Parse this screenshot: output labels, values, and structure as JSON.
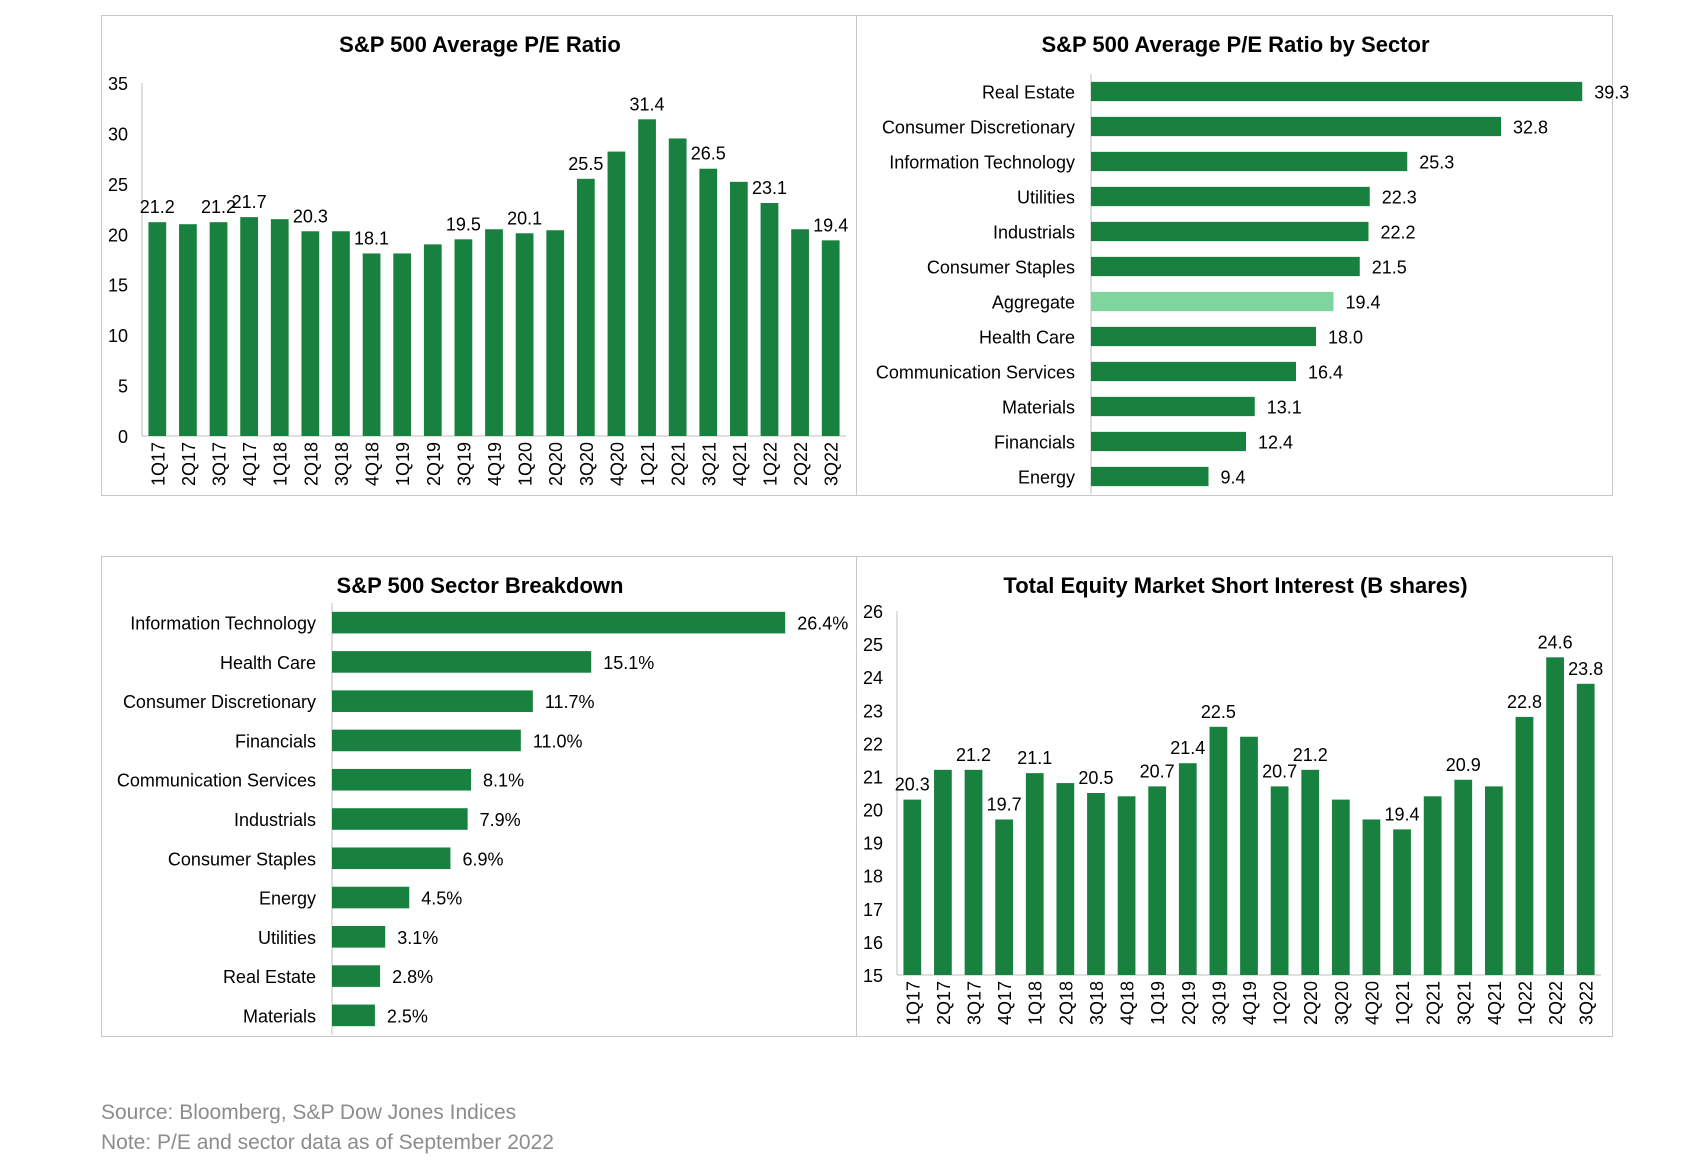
{
  "colors": {
    "bar": "#188140",
    "highlight": "#7fd59e",
    "axis": "#bfbfbf"
  },
  "chart_data": [
    {
      "type": "bar",
      "title": "S&P 500 Average P/E Ratio",
      "categories": [
        "1Q17",
        "2Q17",
        "3Q17",
        "4Q17",
        "1Q18",
        "2Q18",
        "3Q18",
        "4Q18",
        "1Q19",
        "2Q19",
        "3Q19",
        "4Q19",
        "1Q20",
        "2Q20",
        "3Q20",
        "4Q20",
        "1Q21",
        "2Q21",
        "3Q21",
        "4Q21",
        "1Q22",
        "2Q22",
        "3Q22"
      ],
      "values": [
        21.2,
        21.0,
        21.2,
        21.7,
        21.5,
        20.3,
        20.3,
        18.1,
        18.1,
        19.0,
        19.5,
        20.5,
        20.1,
        20.4,
        25.5,
        28.2,
        31.4,
        29.5,
        26.5,
        25.2,
        23.1,
        20.5,
        19.4
      ],
      "data_labels": [
        "21.2",
        "",
        "21.2",
        "21.7",
        "",
        "20.3",
        "",
        "18.1",
        "",
        "",
        "19.5",
        "",
        "20.1",
        "",
        "25.5",
        "",
        "31.4",
        "",
        "26.5",
        "",
        "23.1",
        "",
        "19.4"
      ],
      "ylim": [
        0,
        35
      ],
      "yticks": [
        "0",
        "5",
        "10",
        "15",
        "20",
        "25",
        "30",
        "35"
      ],
      "grid": false
    },
    {
      "type": "bar",
      "orientation": "horizontal",
      "title": "S&P 500 Average P/E Ratio by Sector",
      "categories": [
        "Real Estate",
        "Consumer Discretionary",
        "Information Technology",
        "Utilities",
        "Industrials",
        "Consumer Staples",
        "Aggregate",
        "Health Care",
        "Communication Services",
        "Materials",
        "Financials",
        "Energy"
      ],
      "values": [
        39.3,
        32.8,
        25.3,
        22.3,
        22.2,
        21.5,
        19.4,
        18.0,
        16.4,
        13.1,
        12.4,
        9.4
      ],
      "data_labels": [
        "39.3",
        "32.8",
        "25.3",
        "22.3",
        "22.2",
        "21.5",
        "19.4",
        "18.0",
        "16.4",
        "13.1",
        "12.4",
        "9.4"
      ],
      "highlight": "Aggregate",
      "xlim": [
        0,
        40
      ]
    },
    {
      "type": "bar",
      "orientation": "horizontal",
      "title": "S&P 500 Sector Breakdown",
      "categories": [
        "Information Technology",
        "Health Care",
        "Consumer Discretionary",
        "Financials",
        "Communication Services",
        "Industrials",
        "Consumer Staples",
        "Energy",
        "Utilities",
        "Real Estate",
        "Materials"
      ],
      "values": [
        26.4,
        15.1,
        11.7,
        11.0,
        8.1,
        7.9,
        6.9,
        4.5,
        3.1,
        2.8,
        2.5
      ],
      "data_labels": [
        "26.4%",
        "15.1%",
        "11.7%",
        "11.0%",
        "8.1%",
        "7.9%",
        "6.9%",
        "4.5%",
        "3.1%",
        "2.8%",
        "2.5%"
      ],
      "xlim": [
        0,
        30
      ]
    },
    {
      "type": "bar",
      "title": "Total Equity Market Short Interest (B shares)",
      "categories": [
        "1Q17",
        "2Q17",
        "3Q17",
        "4Q17",
        "1Q18",
        "2Q18",
        "3Q18",
        "4Q18",
        "1Q19",
        "2Q19",
        "3Q19",
        "4Q19",
        "1Q20",
        "2Q20",
        "3Q20",
        "4Q20",
        "1Q21",
        "2Q21",
        "3Q21",
        "4Q21",
        "1Q22",
        "2Q22",
        "3Q22"
      ],
      "values": [
        20.3,
        21.2,
        21.2,
        19.7,
        21.1,
        20.8,
        20.5,
        20.4,
        20.7,
        21.4,
        22.5,
        22.2,
        20.7,
        21.2,
        20.3,
        19.7,
        19.4,
        20.4,
        20.9,
        20.7,
        22.8,
        24.6,
        23.8
      ],
      "data_labels": [
        "20.3",
        "",
        "21.2",
        "19.7",
        "21.1",
        "",
        "20.5",
        "",
        "20.7",
        "21.4",
        "22.5",
        "",
        "20.7",
        "21.2",
        "",
        "",
        "19.4",
        "",
        "20.9",
        "",
        "22.8",
        "24.6",
        "23.8"
      ],
      "ylim": [
        15,
        26
      ],
      "yticks": [
        "15",
        "16",
        "17",
        "18",
        "19",
        "20",
        "21",
        "22",
        "23",
        "24",
        "25",
        "26"
      ],
      "grid": false
    }
  ],
  "footer": {
    "source": "Source: Bloomberg, S&P Dow Jones Indices",
    "note": "Note: P/E and sector data as of September 2022"
  }
}
